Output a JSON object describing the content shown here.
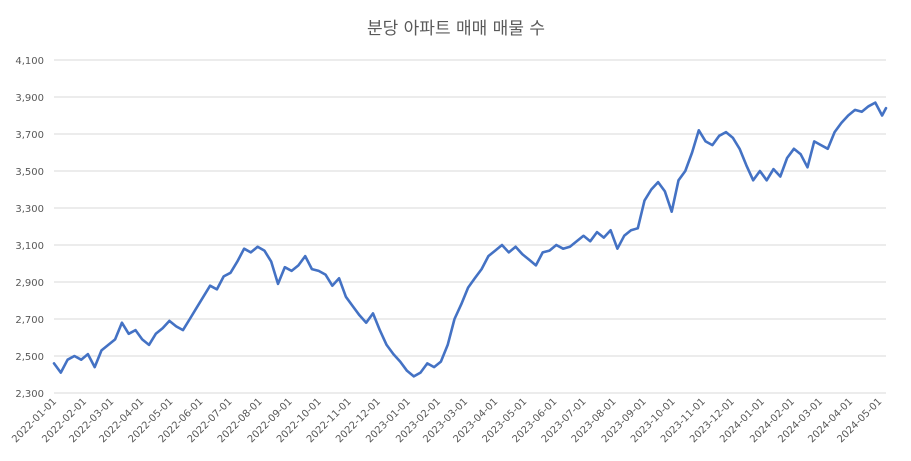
{
  "chart_data": {
    "type": "line",
    "title": "분당 아파트 매매 매물 수",
    "xlabel": "",
    "ylabel": "",
    "ylim": [
      2300,
      4100
    ],
    "yticks": [
      2300,
      2500,
      2700,
      2900,
      3100,
      3300,
      3500,
      3700,
      3900,
      4100
    ],
    "ytick_labels": [
      "2,300",
      "2,500",
      "2,700",
      "2,900",
      "3,100",
      "3,300",
      "3,500",
      "3,700",
      "3,900",
      "4,100"
    ],
    "xlim": [
      "2022-01-01",
      "2024-05-08"
    ],
    "xtick_labels": [
      "2022-01-01",
      "2022-02-01",
      "2022-03-01",
      "2022-04-01",
      "2022-05-01",
      "2022-06-01",
      "2022-07-01",
      "2022-08-01",
      "2022-09-01",
      "2022-10-01",
      "2022-11-01",
      "2022-12-01",
      "2023-01-01",
      "2023-02-01",
      "2023-03-01",
      "2023-04-01",
      "2023-05-01",
      "2023-06-01",
      "2023-07-01",
      "2023-08-01",
      "2023-09-01",
      "2023-10-01",
      "2023-11-01",
      "2023-12-01",
      "2024-01-01",
      "2024-02-01",
      "2024-03-01",
      "2024-04-01",
      "2024-05-01"
    ],
    "grid": true,
    "legend": "none",
    "color": "#4472c4",
    "series": [
      {
        "x": [
          "2022-01-01",
          "2022-01-08",
          "2022-01-15",
          "2022-01-22",
          "2022-01-29",
          "2022-02-05",
          "2022-02-12",
          "2022-02-19",
          "2022-02-26",
          "2022-03-05",
          "2022-03-12",
          "2022-03-19",
          "2022-03-26",
          "2022-04-02",
          "2022-04-09",
          "2022-04-16",
          "2022-04-23",
          "2022-04-30",
          "2022-05-07",
          "2022-05-14",
          "2022-05-21",
          "2022-05-28",
          "2022-06-04",
          "2022-06-11",
          "2022-06-18",
          "2022-06-25",
          "2022-07-02",
          "2022-07-09",
          "2022-07-16",
          "2022-07-23",
          "2022-07-30",
          "2022-08-06",
          "2022-08-13",
          "2022-08-20",
          "2022-08-27",
          "2022-09-03",
          "2022-09-10",
          "2022-09-17",
          "2022-09-24",
          "2022-10-01",
          "2022-10-08",
          "2022-10-15",
          "2022-10-22",
          "2022-10-29",
          "2022-11-05",
          "2022-11-12",
          "2022-11-19",
          "2022-11-26",
          "2022-12-03",
          "2022-12-10",
          "2022-12-17",
          "2022-12-24",
          "2022-12-31",
          "2023-01-07",
          "2023-01-14",
          "2023-01-21",
          "2023-01-28",
          "2023-02-04",
          "2023-02-11",
          "2023-02-18",
          "2023-02-25",
          "2023-03-04",
          "2023-03-11",
          "2023-03-18",
          "2023-03-25",
          "2023-04-01",
          "2023-04-08",
          "2023-04-15",
          "2023-04-22",
          "2023-04-29",
          "2023-05-06",
          "2023-05-13",
          "2023-05-20",
          "2023-05-27",
          "2023-06-03",
          "2023-06-10",
          "2023-06-17",
          "2023-06-24",
          "2023-07-01",
          "2023-07-08",
          "2023-07-15",
          "2023-07-22",
          "2023-07-29",
          "2023-08-05",
          "2023-08-12",
          "2023-08-19",
          "2023-08-26",
          "2023-09-02",
          "2023-09-09",
          "2023-09-16",
          "2023-09-23",
          "2023-09-30",
          "2023-10-07",
          "2023-10-14",
          "2023-10-21",
          "2023-10-28",
          "2023-11-04",
          "2023-11-11",
          "2023-11-18",
          "2023-11-25",
          "2023-12-02",
          "2023-12-09",
          "2023-12-16",
          "2023-12-23",
          "2023-12-30",
          "2024-01-06",
          "2024-01-13",
          "2024-01-20",
          "2024-01-27",
          "2024-02-03",
          "2024-02-10",
          "2024-02-17",
          "2024-02-24",
          "2024-03-02",
          "2024-03-09",
          "2024-03-16",
          "2024-03-23",
          "2024-03-30",
          "2024-04-06",
          "2024-04-13",
          "2024-04-20",
          "2024-04-27",
          "2024-05-04",
          "2024-05-08"
        ],
        "values": [
          2460,
          2410,
          2480,
          2500,
          2480,
          2510,
          2440,
          2530,
          2560,
          2590,
          2680,
          2620,
          2640,
          2590,
          2560,
          2620,
          2650,
          2690,
          2660,
          2640,
          2700,
          2760,
          2820,
          2880,
          2860,
          2930,
          2950,
          3010,
          3080,
          3060,
          3090,
          3070,
          3010,
          2890,
          2980,
          2960,
          2990,
          3040,
          2970,
          2960,
          2940,
          2880,
          2920,
          2820,
          2770,
          2720,
          2680,
          2730,
          2640,
          2560,
          2510,
          2470,
          2420,
          2390,
          2410,
          2460,
          2440,
          2470,
          2560,
          2700,
          2780,
          2870,
          2920,
          2970,
          3040,
          3070,
          3100,
          3060,
          3090,
          3050,
          3020,
          2990,
          3060,
          3070,
          3100,
          3080,
          3090,
          3120,
          3150,
          3120,
          3170,
          3140,
          3180,
          3080,
          3150,
          3180,
          3190,
          3340,
          3400,
          3440,
          3390,
          3280,
          3450,
          3500,
          3600,
          3720,
          3660,
          3640,
          3690,
          3710,
          3680,
          3620,
          3530,
          3450,
          3500,
          3450,
          3510,
          3470,
          3570,
          3620,
          3590,
          3520,
          3660,
          3640,
          3620,
          3710,
          3760,
          3800,
          3830,
          3820,
          3850,
          3870,
          3800,
          3840
        ]
      }
    ]
  }
}
